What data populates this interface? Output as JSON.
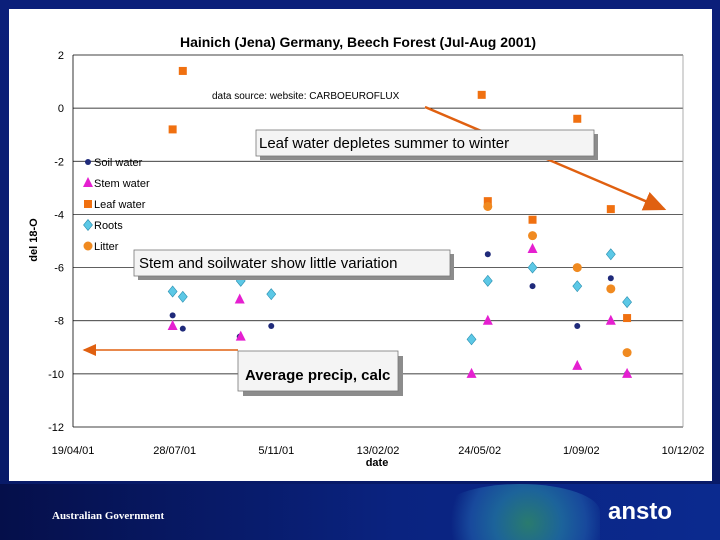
{
  "chart_data": {
    "type": "scatter",
    "title": "Hainich (Jena) Germany, Beech Forest (Jul-Aug 2001)",
    "xlabel": "date",
    "ylabel": "del 18-O",
    "ylim": [
      -12,
      2
    ],
    "y_ticks": [
      "2",
      "0",
      "-2",
      "-4",
      "-6",
      "-8",
      "-10",
      "-12"
    ],
    "x_ticks": [
      "19/04/01",
      "28/07/01",
      "5/11/01",
      "13/02/02",
      "24/05/02",
      "1/09/02",
      "10/12/02"
    ],
    "xlim": [
      "2001-04-19",
      "2002-12-10"
    ],
    "grid": "horizontal",
    "legend_placement": "left",
    "source_note": "data source: website: CARBOEUROFLUX",
    "series": [
      {
        "name": "Soil water",
        "marker": "circle",
        "color": "#1f2a7a",
        "points": [
          {
            "x": "2001-07-26",
            "y": -7.8
          },
          {
            "x": "2001-08-05",
            "y": -8.3
          },
          {
            "x": "2001-09-30",
            "y": -8.6
          },
          {
            "x": "2001-10-31",
            "y": -8.2
          },
          {
            "x": "2002-06-01",
            "y": -5.5
          },
          {
            "x": "2002-07-15",
            "y": -6.7
          },
          {
            "x": "2002-08-28",
            "y": -8.2
          },
          {
            "x": "2002-09-30",
            "y": -6.4
          },
          {
            "x": "2002-10-16",
            "y": -10.0
          }
        ]
      },
      {
        "name": "Stem water",
        "marker": "triangle",
        "color": "#e51fd0",
        "points": [
          {
            "x": "2001-07-26",
            "y": -8.2
          },
          {
            "x": "2001-09-30",
            "y": -7.2
          },
          {
            "x": "2001-10-01",
            "y": -8.6
          },
          {
            "x": "2002-05-16",
            "y": -10.0
          },
          {
            "x": "2002-06-01",
            "y": -8.0
          },
          {
            "x": "2002-07-15",
            "y": -5.3
          },
          {
            "x": "2002-08-28",
            "y": -9.7
          },
          {
            "x": "2002-09-30",
            "y": -8.0
          },
          {
            "x": "2002-10-16",
            "y": -10.0
          }
        ]
      },
      {
        "name": "Leaf water",
        "marker": "square",
        "color": "#f07010",
        "points": [
          {
            "x": "2001-07-26",
            "y": -0.8
          },
          {
            "x": "2001-08-05",
            "y": 1.4
          },
          {
            "x": "2002-05-26",
            "y": 0.5
          },
          {
            "x": "2002-06-01",
            "y": -3.5
          },
          {
            "x": "2002-07-15",
            "y": -4.2
          },
          {
            "x": "2002-08-28",
            "y": -0.4
          },
          {
            "x": "2002-09-30",
            "y": -3.8
          },
          {
            "x": "2002-10-16",
            "y": -7.9
          }
        ]
      },
      {
        "name": "Roots",
        "marker": "diamond",
        "color": "#5cc8e6",
        "points": [
          {
            "x": "2001-07-26",
            "y": -6.9
          },
          {
            "x": "2001-08-05",
            "y": -7.1
          },
          {
            "x": "2001-10-01",
            "y": -6.5
          },
          {
            "x": "2001-10-31",
            "y": -7.0
          },
          {
            "x": "2002-05-16",
            "y": -8.7
          },
          {
            "x": "2002-06-01",
            "y": -6.5
          },
          {
            "x": "2002-07-15",
            "y": -6.0
          },
          {
            "x": "2002-08-28",
            "y": -6.7
          },
          {
            "x": "2002-09-30",
            "y": -5.5
          },
          {
            "x": "2002-10-16",
            "y": -7.3
          }
        ]
      },
      {
        "name": "Litter",
        "marker": "circle",
        "color": "#f08a20",
        "points": [
          {
            "x": "2002-06-01",
            "y": -3.7
          },
          {
            "x": "2002-07-15",
            "y": -4.8
          },
          {
            "x": "2002-08-28",
            "y": -6.0
          },
          {
            "x": "2002-09-30",
            "y": -6.8
          },
          {
            "x": "2002-10-16",
            "y": -9.2
          }
        ]
      }
    ],
    "annotations": [
      {
        "text": "Leaf water depletes summer to winter",
        "arrow_color": "#e06010"
      },
      {
        "text": "Stem and soilwater show little variation"
      },
      {
        "text": "Average precip, calc",
        "arrow_color": "#e06010",
        "arrow_y": -9.1
      }
    ]
  },
  "footer": {
    "gov_label": "Australian Government",
    "logo_text": "ansto"
  },
  "colors": {
    "frame_blue": "#0a1a6e",
    "accent_orange": "#f07010"
  }
}
